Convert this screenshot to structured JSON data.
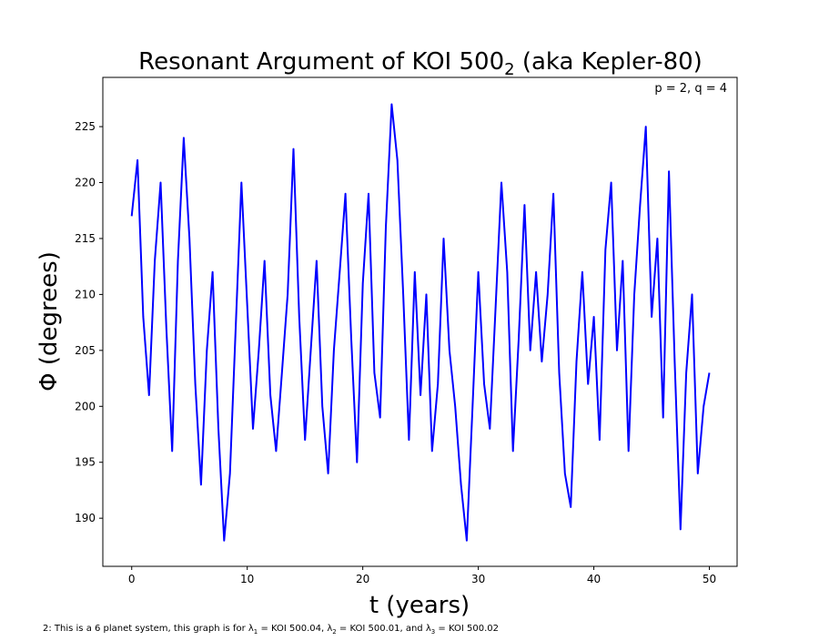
{
  "chart_data": {
    "type": "line",
    "title": {
      "main": "Resonant Argument of KOI 500",
      "subscript": "2",
      "suffix": " (aka Kepler-80)"
    },
    "annotation": "p = 2, q = 4",
    "x_label": "t (years)",
    "y_label": "Φ (degrees)",
    "footnote": [
      "2: This is a 6 planet system, this graph is for λ",
      "1",
      " = KOI 500.04, λ",
      "2",
      " = KOI 500.01, and λ",
      "3",
      " = KOI 500.02"
    ],
    "xlim": [
      -2.5,
      52.4
    ],
    "ylim": [
      185.7,
      229.4
    ],
    "xticks": [
      0,
      10,
      20,
      30,
      40,
      50
    ],
    "yticks": [
      190,
      195,
      200,
      205,
      210,
      215,
      220,
      225
    ],
    "grid": false,
    "x": [
      0,
      0.5,
      1,
      1.5,
      2,
      2.5,
      3,
      3.5,
      4,
      4.5,
      5,
      5.5,
      6,
      6.5,
      7,
      7.5,
      8,
      8.5,
      9,
      9.5,
      10,
      10.5,
      11,
      11.5,
      12,
      12.5,
      13,
      13.5,
      14,
      14.5,
      15,
      15.5,
      16,
      16.5,
      17,
      17.5,
      18,
      18.5,
      19,
      19.5,
      20,
      20.5,
      21,
      21.5,
      22,
      22.5,
      23,
      23.5,
      24,
      24.5,
      25,
      25.5,
      26,
      26.5,
      27,
      27.5,
      28,
      28.5,
      29,
      29.5,
      30,
      30.5,
      31,
      31.5,
      32,
      32.5,
      33,
      33.5,
      34,
      34.5,
      35,
      35.5,
      36,
      36.5,
      37,
      37.5,
      38,
      38.5,
      39,
      39.5,
      40,
      40.5,
      41,
      41.5,
      42,
      42.5,
      43,
      43.5,
      44,
      44.5,
      45,
      45.5,
      46,
      46.5,
      47,
      47.5,
      48,
      48.5,
      49,
      49.5,
      50
    ],
    "series": [
      {
        "name": "Φ",
        "color": "#0000ff",
        "values": [
          217,
          222,
          208,
          201,
          213,
          220,
          207,
          196,
          213,
          224,
          215,
          202,
          193,
          205,
          212,
          198,
          188,
          194,
          207,
          220,
          209,
          198,
          205,
          213,
          201,
          196,
          203,
          210,
          223,
          208,
          197,
          205,
          213,
          200,
          194,
          205,
          212,
          219,
          206,
          195,
          211,
          219,
          203,
          199,
          216,
          227,
          222,
          210,
          197,
          212,
          201,
          210,
          196,
          202,
          215,
          205,
          200,
          193,
          188,
          200,
          212,
          202,
          198,
          209,
          220,
          212,
          196,
          206,
          218,
          205,
          212,
          204,
          210,
          219,
          203,
          194,
          191,
          204,
          212,
          202,
          208,
          197,
          214,
          220,
          205,
          213,
          196,
          210,
          218,
          225,
          208,
          215,
          199,
          221,
          204,
          189,
          203,
          210,
          194,
          200,
          203
        ]
      }
    ]
  }
}
